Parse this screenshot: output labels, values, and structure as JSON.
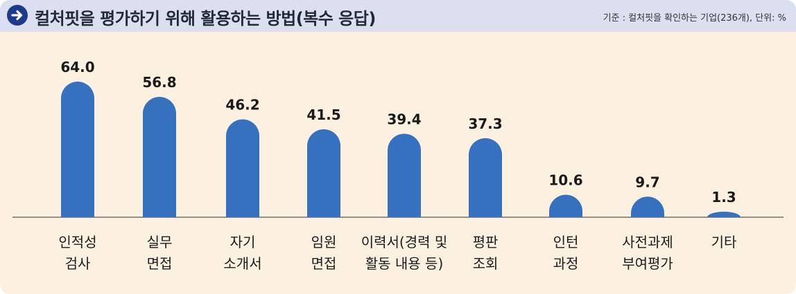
{
  "header": {
    "title": "컬처핏을 평가하기 위해 활용하는 방법(복수 응답)",
    "subtitle": "기준 : 컬처핏을 확인하는 기업(236개), 단위: %",
    "icon": "arrow-right-circle-icon"
  },
  "colors": {
    "bar": "#3571bf",
    "background": "#fcf1e1",
    "header_bg": "#dcdff0",
    "icon": "#1e3a8a"
  },
  "chart_data": {
    "type": "bar",
    "title": "컬처핏을 평가하기 위해 활용하는 방법(복수 응답)",
    "subtitle": "기준 : 컬처핏을 확인하는 기업(236개), 단위: %",
    "categories": [
      [
        "인적성",
        "검사"
      ],
      [
        "실무",
        "면접"
      ],
      [
        "자기",
        "소개서"
      ],
      [
        "임원",
        "면접"
      ],
      [
        "이력서(경력 및",
        "활동 내용 등)"
      ],
      [
        "평판",
        "조회"
      ],
      [
        "인턴",
        "과정"
      ],
      [
        "사전과제",
        "부여평가"
      ],
      [
        "기타"
      ]
    ],
    "values": [
      64.0,
      56.8,
      46.2,
      41.5,
      39.4,
      37.3,
      10.6,
      9.7,
      1.3
    ],
    "value_labels": [
      "64.0",
      "56.8",
      "46.2",
      "41.5",
      "39.4",
      "37.3",
      "10.6",
      "9.7",
      "1.3"
    ],
    "ylim": [
      0,
      64.0
    ],
    "grid": false,
    "legend": "none"
  }
}
